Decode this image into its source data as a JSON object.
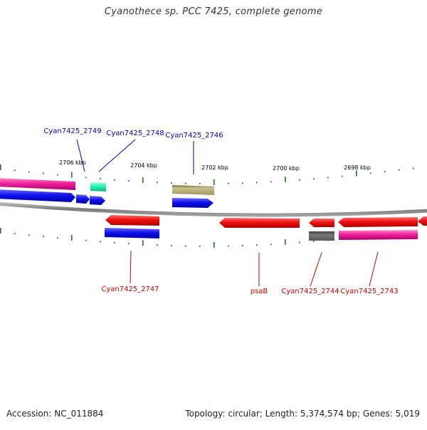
{
  "title": "Cyanothece sp. PCC 7425, complete genome",
  "footer": {
    "accession": "Accession: NC_011884",
    "summary": "Topology: circular; Length: 5,374,574 bp; Genes: 5,019"
  },
  "scale_labels": [
    "2706 kbp",
    "2704 kbp",
    "2702 kbp",
    "2700 kbp",
    "2698 kbp"
  ],
  "gene_labels_top": [
    "Cyan7425_2749",
    "Cyan7425_2748",
    "Cyan7425_2746"
  ],
  "gene_labels_bottom": [
    "Cyan7425_2747",
    "psaB",
    "Cyan7425_2744",
    "Cyan7425_2743"
  ],
  "colors": {
    "top_label": "#0000bb",
    "bottom_label": "#cc0000",
    "tick": "#227722",
    "backbone": "#8a8a8a",
    "red": "#ee1111",
    "blue": "#1111ee",
    "pink": "#ee2299",
    "green": "#22eeaa",
    "olive": "#b0a86a",
    "gray": "#666666"
  }
}
